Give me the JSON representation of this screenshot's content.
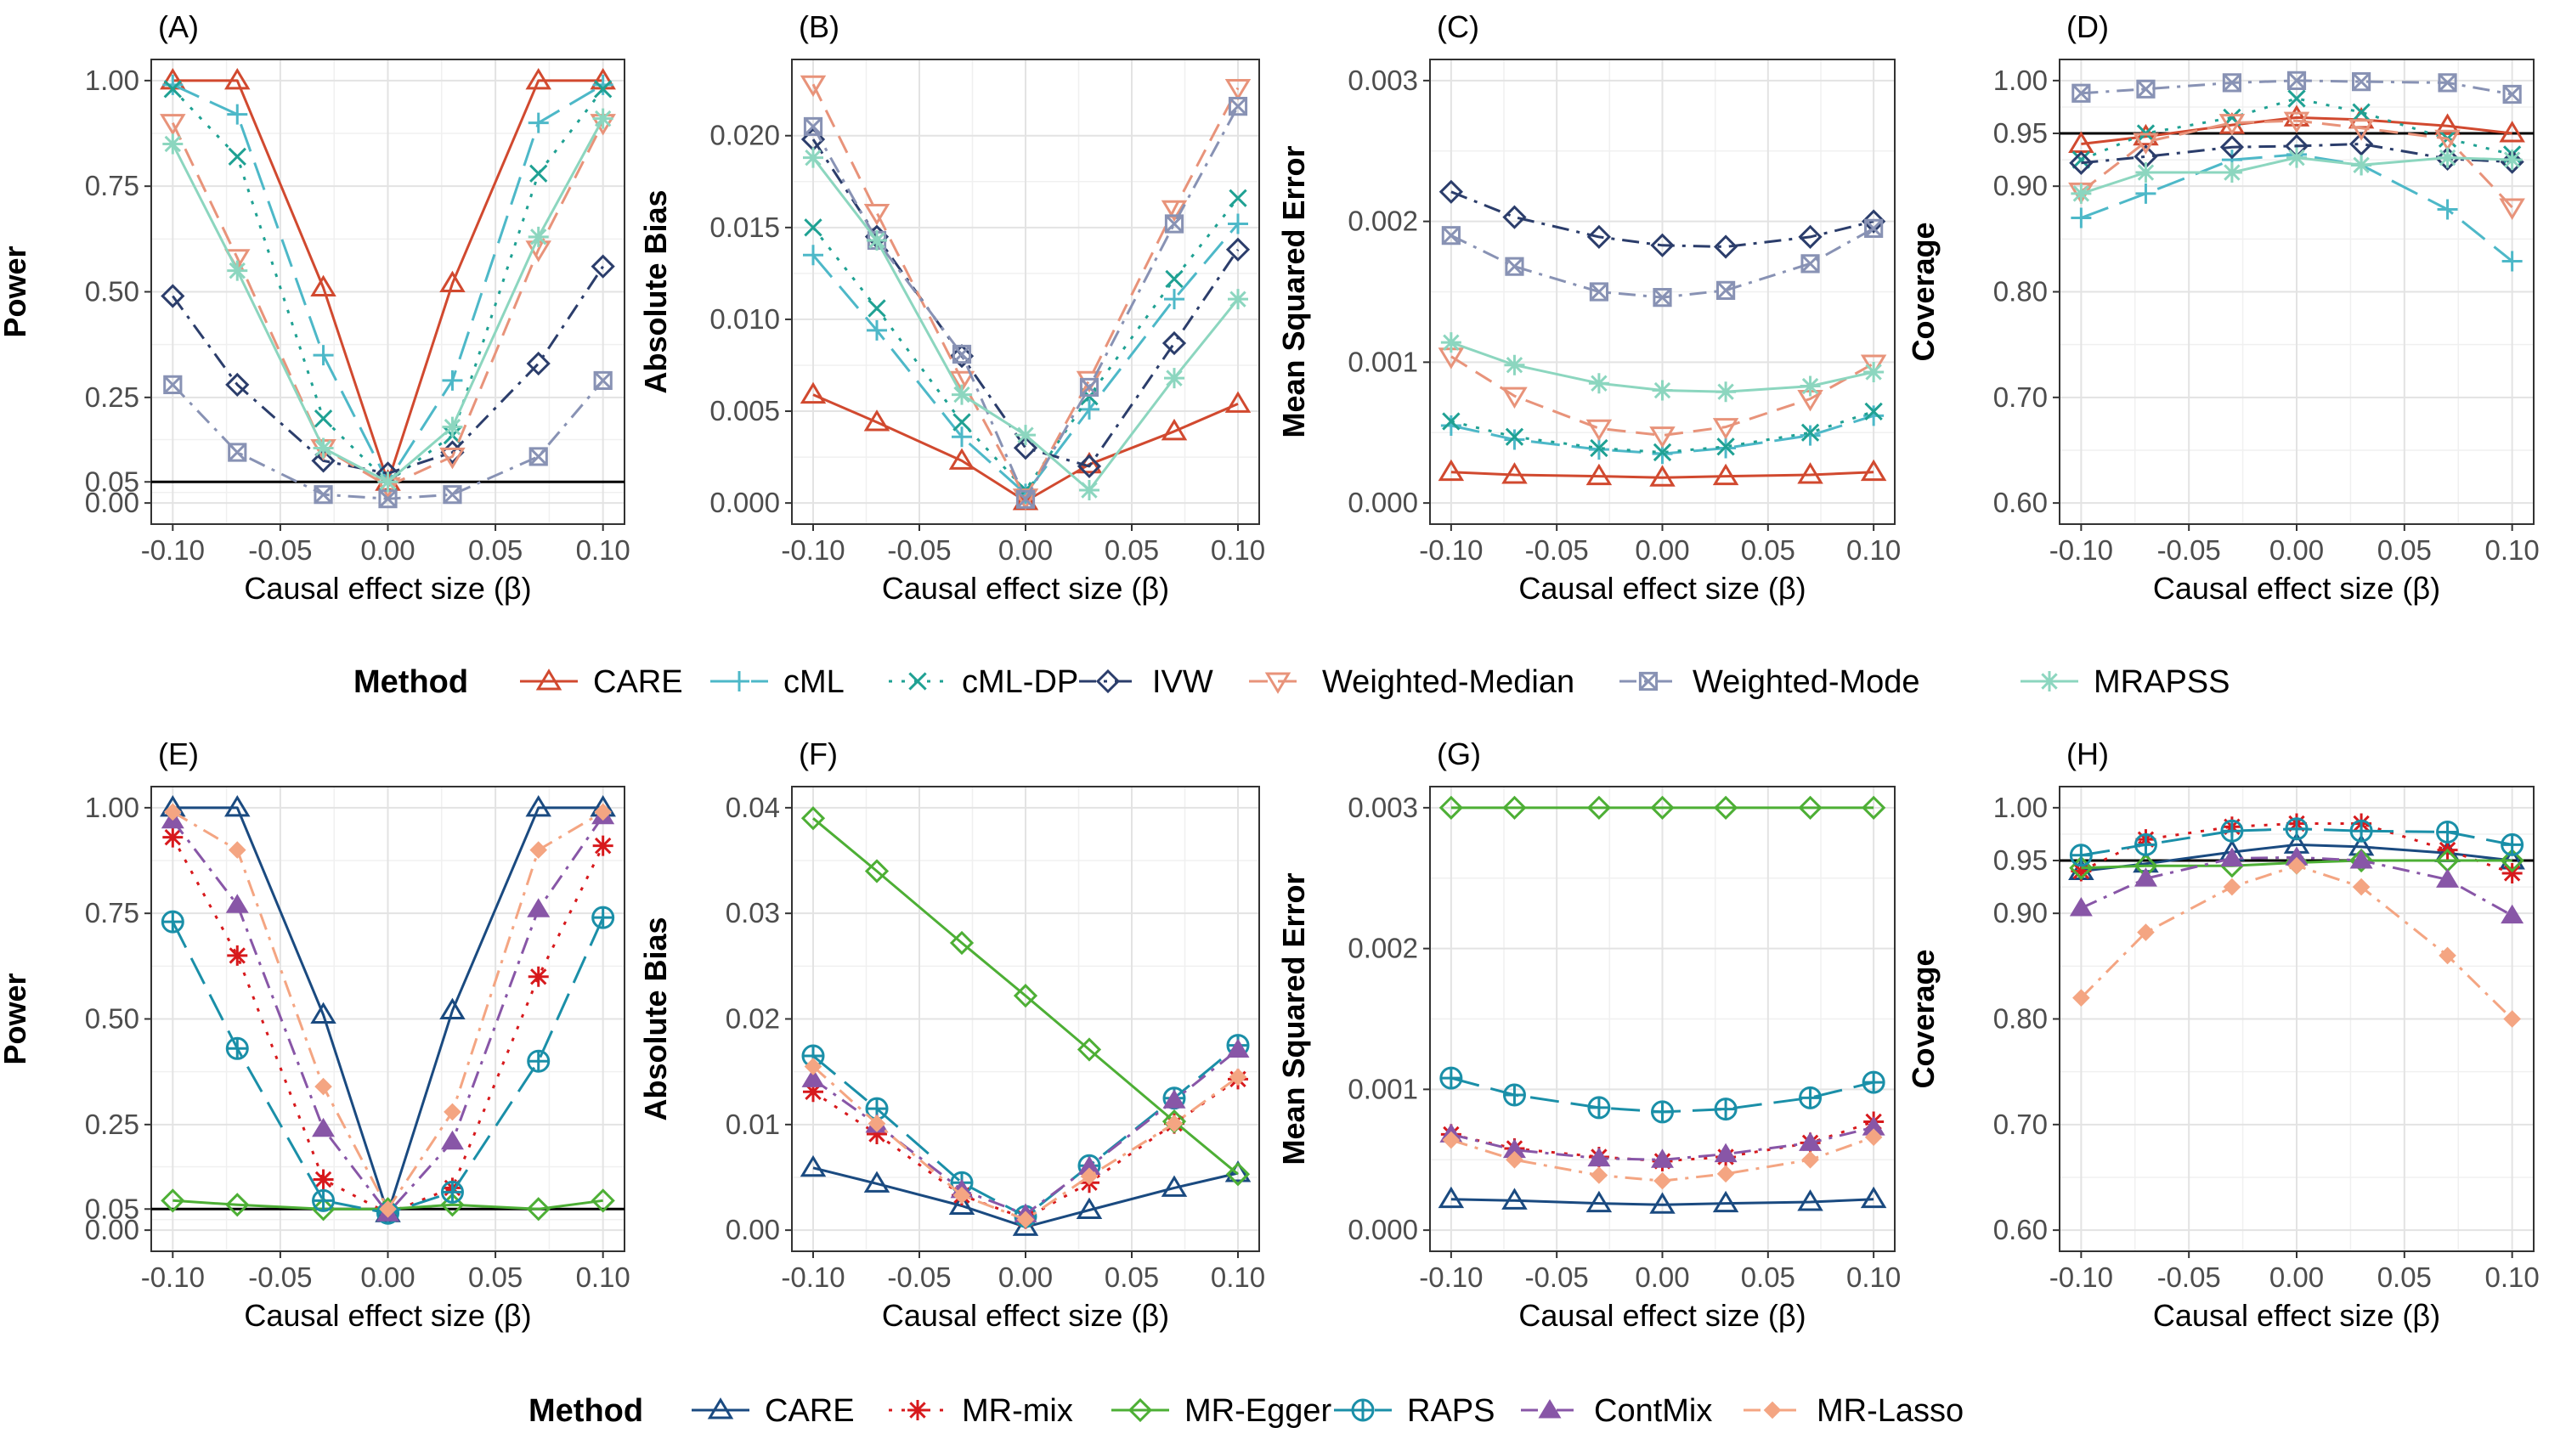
{
  "row1_legend": {
    "title": "Method",
    "items": [
      {
        "name": "CARE",
        "color": "#D1492F",
        "dash": "solid",
        "shape": "triangle"
      },
      {
        "name": "cML",
        "color": "#4DB8C8",
        "dash": "longdash",
        "shape": "plus"
      },
      {
        "name": "cML-DP",
        "color": "#1FA193",
        "dash": "dotted",
        "shape": "cross"
      },
      {
        "name": "IVW",
        "color": "#2B3D6B",
        "dash": "dotdash",
        "shape": "diamond"
      },
      {
        "name": "Weighted-Median",
        "color": "#E8937A",
        "dash": "dashed",
        "shape": "triangle-down"
      },
      {
        "name": "Weighted-Mode",
        "color": "#8892B4",
        "dash": "dotdash",
        "shape": "square-x"
      },
      {
        "name": "MRAPSS",
        "color": "#8CD6BF",
        "dash": "solid",
        "shape": "asterisk"
      }
    ]
  },
  "row2_legend": {
    "title": "Method",
    "items": [
      {
        "name": "CARE",
        "color": "#1A4A80",
        "dash": "solid",
        "shape": "triangle"
      },
      {
        "name": "MR-mix",
        "color": "#D7191C",
        "dash": "dotted",
        "shape": "asterisk"
      },
      {
        "name": "MR-Egger",
        "color": "#4DAF35",
        "dash": "solid",
        "shape": "diamond"
      },
      {
        "name": "RAPS",
        "color": "#1A8FA8",
        "dash": "longdash",
        "shape": "circle-plus"
      },
      {
        "name": "ContMix",
        "color": "#8856A7",
        "dash": "dotdash",
        "shape": "triangle-filled"
      },
      {
        "name": "MR-Lasso",
        "color": "#F4A582",
        "dash": "dotdash",
        "shape": "diamond-filled"
      }
    ]
  },
  "chart_data": [
    {
      "panel": "(A)",
      "type": "line",
      "xlabel": "Causal effect size (β)",
      "ylabel": "Power",
      "x": [
        -0.1,
        -0.07,
        -0.03,
        0,
        0.03,
        0.07,
        0.1
      ],
      "xlim": [
        -0.1,
        0.1
      ],
      "ylim": [
        0,
        1
      ],
      "yticks": [
        "0.00",
        "0.05",
        "0.25",
        "0.50",
        "0.75",
        "1.00"
      ],
      "xticks": [
        "-0.10",
        "-0.05",
        "0.00",
        "0.05",
        "0.10"
      ],
      "hline": 0.05,
      "series": [
        {
          "name": "CARE",
          "values": [
            1.0,
            1.0,
            0.51,
            0.05,
            0.52,
            1.0,
            1.0
          ]
        },
        {
          "name": "cML",
          "values": [
            0.99,
            0.92,
            0.35,
            0.05,
            0.29,
            0.9,
            0.99
          ]
        },
        {
          "name": "cML-DP",
          "values": [
            0.98,
            0.82,
            0.2,
            0.05,
            0.16,
            0.78,
            0.98
          ]
        },
        {
          "name": "IVW",
          "values": [
            0.49,
            0.28,
            0.1,
            0.07,
            0.12,
            0.33,
            0.56
          ]
        },
        {
          "name": "Weighted-Median",
          "values": [
            0.9,
            0.58,
            0.13,
            0.04,
            0.11,
            0.6,
            0.9
          ]
        },
        {
          "name": "Weighted-Mode",
          "values": [
            0.28,
            0.12,
            0.02,
            0.01,
            0.02,
            0.11,
            0.29
          ]
        },
        {
          "name": "MRAPSS",
          "values": [
            0.85,
            0.55,
            0.13,
            0.05,
            0.18,
            0.63,
            0.91
          ]
        }
      ]
    },
    {
      "panel": "(B)",
      "type": "line",
      "xlabel": "Causal effect size (β)",
      "ylabel": "Absolute Bias",
      "x": [
        -0.1,
        -0.07,
        -0.03,
        0,
        0.03,
        0.07,
        0.1
      ],
      "xlim": [
        -0.1,
        0.1
      ],
      "ylim": [
        0,
        0.023
      ],
      "yticks": [
        "0.000",
        "0.005",
        "0.010",
        "0.015",
        "0.020"
      ],
      "xticks": [
        "-0.10",
        "-0.05",
        "0.00",
        "0.05",
        "0.10"
      ],
      "series": [
        {
          "name": "CARE",
          "values": [
            0.0059,
            0.0044,
            0.0023,
            0.0001,
            0.0021,
            0.0039,
            0.0054
          ]
        },
        {
          "name": "cML",
          "values": [
            0.0135,
            0.0094,
            0.0036,
            0.0005,
            0.0051,
            0.0111,
            0.0152
          ]
        },
        {
          "name": "cML-DP",
          "values": [
            0.015,
            0.0106,
            0.0044,
            0.0007,
            0.0058,
            0.0122,
            0.0166
          ]
        },
        {
          "name": "IVW",
          "values": [
            0.0198,
            0.0145,
            0.008,
            0.003,
            0.002,
            0.0087,
            0.0138
          ]
        },
        {
          "name": "Weighted-Median",
          "values": [
            0.0228,
            0.0158,
            0.0067,
            0.0003,
            0.0067,
            0.016,
            0.0226
          ]
        },
        {
          "name": "Weighted-Mode",
          "values": [
            0.0205,
            0.0143,
            0.0081,
            0.0002,
            0.0063,
            0.0152,
            0.0216
          ]
        },
        {
          "name": "MRAPSS",
          "values": [
            0.0188,
            0.0143,
            0.0059,
            0.0037,
            0.0007,
            0.0068,
            0.0111
          ]
        }
      ]
    },
    {
      "panel": "(C)",
      "type": "line",
      "xlabel": "Causal effect size (β)",
      "ylabel": "Mean Squared Error",
      "x": [
        -0.1,
        -0.07,
        -0.03,
        0,
        0.03,
        0.07,
        0.1
      ],
      "xlim": [
        -0.1,
        0.1
      ],
      "ylim": [
        0,
        0.003
      ],
      "yticks": [
        "0.000",
        "0.001",
        "0.002",
        "0.003"
      ],
      "xticks": [
        "-0.10",
        "-0.05",
        "0.00",
        "0.05",
        "0.10"
      ],
      "series": [
        {
          "name": "CARE",
          "values": [
            0.00022,
            0.0002,
            0.00019,
            0.00018,
            0.00019,
            0.0002,
            0.00022
          ]
        },
        {
          "name": "cML",
          "values": [
            0.00055,
            0.00045,
            0.00038,
            0.00035,
            0.00039,
            0.00048,
            0.00062
          ]
        },
        {
          "name": "cML-DP",
          "values": [
            0.00058,
            0.00047,
            0.00039,
            0.00036,
            0.0004,
            0.0005,
            0.00065
          ]
        },
        {
          "name": "IVW",
          "values": [
            0.00221,
            0.00203,
            0.00189,
            0.00183,
            0.00182,
            0.00189,
            0.002
          ]
        },
        {
          "name": "Weighted-Median",
          "values": [
            0.00104,
            0.00076,
            0.00053,
            0.00048,
            0.00054,
            0.00074,
            0.00099
          ]
        },
        {
          "name": "Weighted-Mode",
          "values": [
            0.0019,
            0.00168,
            0.0015,
            0.00146,
            0.00151,
            0.0017,
            0.00195
          ]
        },
        {
          "name": "MRAPSS",
          "values": [
            0.00114,
            0.00098,
            0.00085,
            0.0008,
            0.00079,
            0.00083,
            0.00093
          ]
        }
      ]
    },
    {
      "panel": "(D)",
      "type": "line",
      "xlabel": "Causal effect size (β)",
      "ylabel": "Coverage",
      "x": [
        -0.1,
        -0.07,
        -0.03,
        0,
        0.03,
        0.07,
        0.1
      ],
      "xlim": [
        -0.1,
        0.1
      ],
      "ylim": [
        0.6,
        1.0
      ],
      "yticks": [
        "0.60",
        "0.70",
        "0.80",
        "0.90",
        "0.95",
        "1.00"
      ],
      "xticks": [
        "-0.10",
        "-0.05",
        "0.00",
        "0.05",
        "0.10"
      ],
      "hline": 0.95,
      "series": [
        {
          "name": "CARE",
          "values": [
            0.94,
            0.947,
            0.958,
            0.965,
            0.963,
            0.957,
            0.95
          ]
        },
        {
          "name": "cML",
          "values": [
            0.87,
            0.893,
            0.925,
            0.93,
            0.92,
            0.878,
            0.829
          ]
        },
        {
          "name": "cML-DP",
          "values": [
            0.925,
            0.95,
            0.965,
            0.983,
            0.97,
            0.945,
            0.93
          ]
        },
        {
          "name": "IVW",
          "values": [
            0.922,
            0.928,
            0.937,
            0.938,
            0.94,
            0.926,
            0.923
          ]
        },
        {
          "name": "Weighted-Median",
          "values": [
            0.895,
            0.942,
            0.96,
            0.962,
            0.955,
            0.945,
            0.88
          ]
        },
        {
          "name": "Weighted-Mode",
          "values": [
            0.988,
            0.992,
            0.998,
            1.0,
            0.999,
            0.998,
            0.987
          ]
        },
        {
          "name": "MRAPSS",
          "values": [
            0.893,
            0.913,
            0.913,
            0.927,
            0.92,
            0.927,
            0.925
          ]
        }
      ]
    },
    {
      "panel": "(E)",
      "type": "line",
      "xlabel": "Causal effect size (β)",
      "ylabel": "Power",
      "x": [
        -0.1,
        -0.07,
        -0.03,
        0,
        0.03,
        0.07,
        0.1
      ],
      "xlim": [
        -0.1,
        0.1
      ],
      "ylim": [
        0,
        1
      ],
      "yticks": [
        "0.00",
        "0.05",
        "0.25",
        "0.50",
        "0.75",
        "1.00"
      ],
      "xticks": [
        "-0.10",
        "-0.05",
        "0.00",
        "0.05",
        "0.10"
      ],
      "hline": 0.05,
      "series": [
        {
          "name": "CARE",
          "values": [
            1.0,
            1.0,
            0.51,
            0.04,
            0.52,
            1.0,
            1.0
          ]
        },
        {
          "name": "MR-mix",
          "values": [
            0.93,
            0.65,
            0.12,
            0.04,
            0.1,
            0.6,
            0.91
          ]
        },
        {
          "name": "MR-Egger",
          "values": [
            0.07,
            0.06,
            0.05,
            0.05,
            0.06,
            0.05,
            0.07
          ]
        },
        {
          "name": "RAPS",
          "values": [
            0.73,
            0.43,
            0.07,
            0.04,
            0.09,
            0.4,
            0.74
          ]
        },
        {
          "name": "ContMix",
          "values": [
            0.97,
            0.77,
            0.24,
            0.04,
            0.21,
            0.76,
            0.98
          ]
        },
        {
          "name": "MR-Lasso",
          "values": [
            0.99,
            0.9,
            0.34,
            0.05,
            0.28,
            0.9,
            0.99
          ]
        }
      ]
    },
    {
      "panel": "(F)",
      "type": "line",
      "xlabel": "Causal effect size (β)",
      "ylabel": "Absolute Bias",
      "x": [
        -0.1,
        -0.07,
        -0.03,
        0,
        0.03,
        0.07,
        0.1
      ],
      "xlim": [
        -0.1,
        0.1
      ],
      "ylim": [
        0,
        0.04
      ],
      "yticks": [
        "0.00",
        "0.01",
        "0.02",
        "0.03",
        "0.04"
      ],
      "xticks": [
        "-0.10",
        "-0.05",
        "0.00",
        "0.05",
        "0.10"
      ],
      "series": [
        {
          "name": "CARE",
          "values": [
            0.0059,
            0.0044,
            0.0023,
            0.0003,
            0.0019,
            0.004,
            0.0054
          ]
        },
        {
          "name": "MR-mix",
          "values": [
            0.0131,
            0.0091,
            0.0033,
            0.0011,
            0.0045,
            0.0101,
            0.0143
          ]
        },
        {
          "name": "MR-Egger",
          "values": [
            0.039,
            0.034,
            0.0272,
            0.0222,
            0.0171,
            0.0103,
            0.0053
          ]
        },
        {
          "name": "RAPS",
          "values": [
            0.0165,
            0.0115,
            0.0045,
            0.0013,
            0.0061,
            0.0125,
            0.0175
          ]
        },
        {
          "name": "ContMix",
          "values": [
            0.0143,
            0.01,
            0.0038,
            0.0015,
            0.006,
            0.0123,
            0.0171
          ]
        },
        {
          "name": "MR-Lasso",
          "values": [
            0.0155,
            0.0101,
            0.0033,
            0.001,
            0.0051,
            0.0101,
            0.0145
          ]
        }
      ]
    },
    {
      "panel": "(G)",
      "type": "line",
      "xlabel": "Causal effect size (β)",
      "ylabel": "Mean Squared Error",
      "x": [
        -0.1,
        -0.07,
        -0.03,
        0,
        0.03,
        0.07,
        0.1
      ],
      "xlim": [
        -0.1,
        0.1
      ],
      "ylim": [
        0,
        0.003
      ],
      "yticks": [
        "0.000",
        "0.001",
        "0.002",
        "0.003"
      ],
      "xticks": [
        "-0.10",
        "-0.05",
        "0.00",
        "0.05",
        "0.10"
      ],
      "series": [
        {
          "name": "CARE",
          "values": [
            0.00022,
            0.00021,
            0.00019,
            0.00018,
            0.00019,
            0.0002,
            0.00022
          ]
        },
        {
          "name": "MR-mix",
          "values": [
            0.00068,
            0.00058,
            0.00052,
            0.00049,
            0.00052,
            0.00062,
            0.00077
          ]
        },
        {
          "name": "MR-Egger",
          "values": [
            0.003,
            0.003,
            0.003,
            0.003,
            0.003,
            0.003,
            0.003
          ]
        },
        {
          "name": "RAPS",
          "values": [
            0.00108,
            0.00096,
            0.00087,
            0.00084,
            0.00086,
            0.00094,
            0.00105
          ]
        },
        {
          "name": "ContMix",
          "values": [
            0.00068,
            0.00057,
            0.00051,
            0.0005,
            0.00054,
            0.00062,
            0.00073
          ]
        },
        {
          "name": "MR-Lasso",
          "values": [
            0.00064,
            0.0005,
            0.00039,
            0.00035,
            0.0004,
            0.0005,
            0.00066
          ]
        }
      ]
    },
    {
      "panel": "(H)",
      "type": "line",
      "xlabel": "Causal effect size (β)",
      "ylabel": "Coverage",
      "x": [
        -0.1,
        -0.07,
        -0.03,
        0,
        0.03,
        0.07,
        0.1
      ],
      "xlim": [
        -0.1,
        0.1
      ],
      "ylim": [
        0.6,
        1.0
      ],
      "yticks": [
        "0.60",
        "0.70",
        "0.80",
        "0.90",
        "0.95",
        "1.00"
      ],
      "xticks": [
        "-0.10",
        "-0.05",
        "0.00",
        "0.05",
        "0.10"
      ],
      "hline": 0.95,
      "series": [
        {
          "name": "CARE",
          "values": [
            0.94,
            0.947,
            0.958,
            0.965,
            0.963,
            0.957,
            0.95
          ]
        },
        {
          "name": "MR-mix",
          "values": [
            0.94,
            0.97,
            0.982,
            0.985,
            0.985,
            0.96,
            0.938
          ]
        },
        {
          "name": "MR-Egger",
          "values": [
            0.943,
            0.945,
            0.945,
            0.948,
            0.95,
            0.95,
            0.95
          ]
        },
        {
          "name": "RAPS",
          "values": [
            0.955,
            0.965,
            0.978,
            0.98,
            0.978,
            0.977,
            0.965
          ]
        },
        {
          "name": "ContMix",
          "values": [
            0.905,
            0.933,
            0.952,
            0.953,
            0.95,
            0.932,
            0.898
          ]
        },
        {
          "name": "MR-Lasso",
          "values": [
            0.82,
            0.882,
            0.925,
            0.945,
            0.925,
            0.86,
            0.8
          ]
        }
      ]
    }
  ]
}
